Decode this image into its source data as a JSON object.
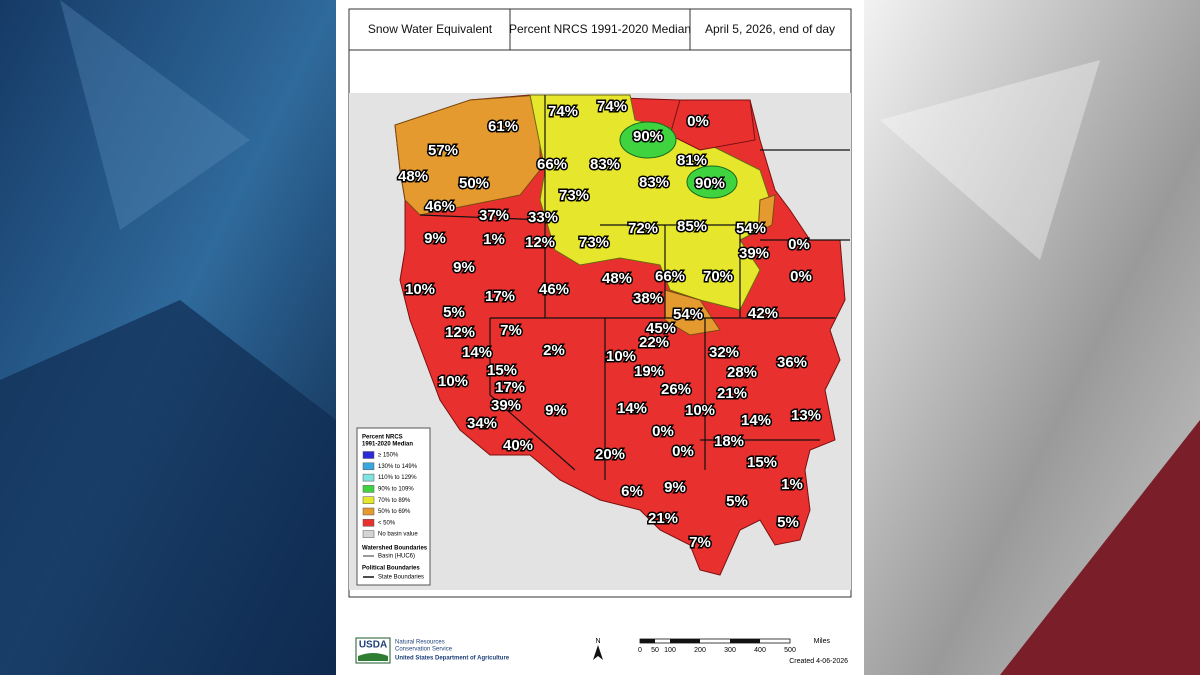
{
  "header": {
    "cells": [
      "Snow Water Equivalent",
      "Percent NRCS 1991-2020 Median",
      "April 5, 2026, end of day"
    ]
  },
  "map": {
    "basin_labels": [
      "74%",
      "74%",
      "61%",
      "0%",
      "90%",
      "57%",
      "66%",
      "83%",
      "81%",
      "48%",
      "50%",
      "83%",
      "90%",
      "73%",
      "46%",
      "37%",
      "33%",
      "72%",
      "85%",
      "54%",
      "9%",
      "1%",
      "12%",
      "73%",
      "0%",
      "39%",
      "9%",
      "48%",
      "66%",
      "70%",
      "0%",
      "10%",
      "17%",
      "46%",
      "38%",
      "5%",
      "54%",
      "42%",
      "12%",
      "7%",
      "45%",
      "22%",
      "14%",
      "2%",
      "10%",
      "32%",
      "36%",
      "15%",
      "19%",
      "28%",
      "10%",
      "17%",
      "26%",
      "21%",
      "13%",
      "39%",
      "9%",
      "14%",
      "10%",
      "14%",
      "34%",
      "0%",
      "18%",
      "40%",
      "20%",
      "0%",
      "15%",
      "1%",
      "6%",
      "9%",
      "5%",
      "21%",
      "5%",
      "7%"
    ]
  },
  "legend": {
    "title": [
      "Percent NRCS",
      "1991-2020 Median"
    ],
    "items": [
      {
        "label": "≥ 150%",
        "color": "#2a2ad6"
      },
      {
        "label": "130% to 149%",
        "color": "#3aa6dc"
      },
      {
        "label": "110% to 129%",
        "color": "#7fe3e0"
      },
      {
        "label": "90% to 109%",
        "color": "#3fd43f"
      },
      {
        "label": "70% to 89%",
        "color": "#e6e62c"
      },
      {
        "label": "50% to 69%",
        "color": "#e59a2f"
      },
      {
        "label": "< 50%",
        "color": "#e8312f"
      },
      {
        "label": "No basin value",
        "color": "#d4d4d4"
      }
    ],
    "watershed": {
      "title": "Watershed Boundaries",
      "item": "Basin (HUC6)"
    },
    "political": {
      "title": "Political Boundaries",
      "item": "State Boundaries"
    }
  },
  "footer": {
    "agency_short": "USDA",
    "agency_lines": [
      "Natural Resources",
      "Conservation Service"
    ],
    "department": "United States Department of Agriculture",
    "north": "N",
    "scale_unit": "Miles",
    "scale_ticks": [
      "0",
      "50",
      "100",
      "200",
      "300",
      "400",
      "500"
    ],
    "created": "Created 4-06-2026"
  }
}
